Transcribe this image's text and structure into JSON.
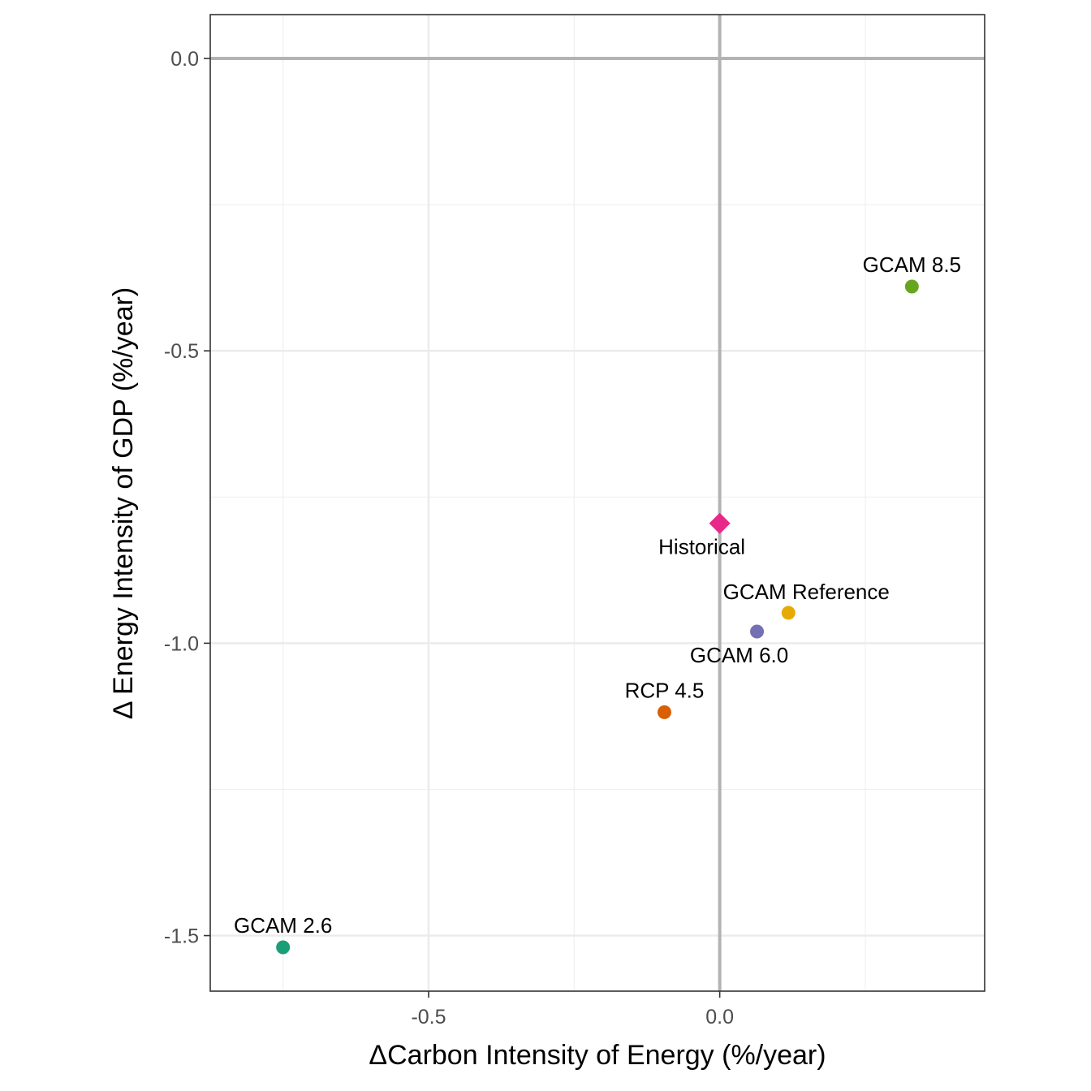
{
  "chart_data": {
    "type": "scatter",
    "xlabel": "ΔCarbon Intensity of Energy (%/year)",
    "ylabel": "Δ Energy Intensity of GDP (%/year)",
    "xlim": [
      -0.875,
      0.455
    ],
    "ylim": [
      -1.595,
      0.075
    ],
    "x_ticks": [
      {
        "value": -0.5,
        "label": "-0.5"
      },
      {
        "value": 0.0,
        "label": "0.0"
      }
    ],
    "y_ticks": [
      {
        "value": 0.0,
        "label": "0.0"
      },
      {
        "value": -0.5,
        "label": "-0.5"
      },
      {
        "value": -1.0,
        "label": "-1.0"
      },
      {
        "value": -1.5,
        "label": "-1.5"
      }
    ],
    "x_minor": [
      -0.75,
      -0.25,
      0.25
    ],
    "y_minor": [
      -0.25,
      -0.75,
      -1.25
    ],
    "reference_lines": {
      "x": 0.0,
      "y": 0.0
    },
    "grid": true,
    "legend": "none",
    "points": [
      {
        "label": "GCAM 8.5",
        "x": 0.33,
        "y": -0.39,
        "color": "#66a61e",
        "shape": "circle",
        "label_pos": "above"
      },
      {
        "label": "Historical",
        "x": 0.0,
        "y": -0.795,
        "color": "#e7298a",
        "shape": "diamond",
        "label_pos": "below-left"
      },
      {
        "label": "GCAM Reference",
        "x": 0.118,
        "y": -0.948,
        "color": "#e6ab02",
        "shape": "circle",
        "label_pos": "above-left"
      },
      {
        "label": "GCAM 6.0",
        "x": 0.064,
        "y": -0.98,
        "color": "#7570b3",
        "shape": "circle",
        "label_pos": "below-left"
      },
      {
        "label": "RCP 4.5",
        "x": -0.095,
        "y": -1.118,
        "color": "#d95f02",
        "shape": "circle",
        "label_pos": "above"
      },
      {
        "label": "GCAM 2.6",
        "x": -0.75,
        "y": -1.52,
        "color": "#1b9e77",
        "shape": "circle",
        "label_pos": "above"
      }
    ]
  }
}
